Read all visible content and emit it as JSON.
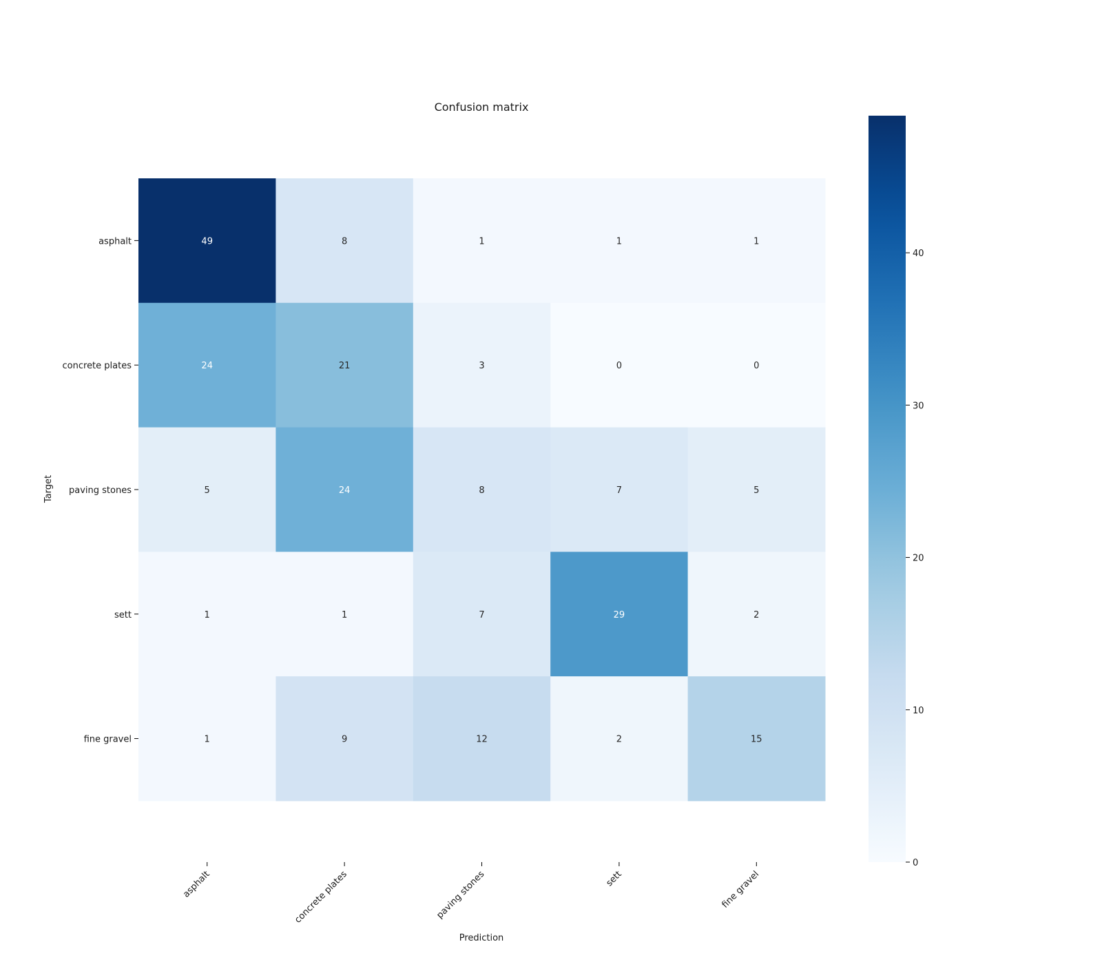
{
  "chart_data": {
    "type": "heatmap",
    "title": "Confusion matrix",
    "xlabel": "Prediction",
    "ylabel": "Target",
    "x_categories": [
      "asphalt",
      "concrete plates",
      "paving stones",
      "sett",
      "fine gravel"
    ],
    "y_categories": [
      "asphalt",
      "concrete plates",
      "paving stones",
      "sett",
      "fine gravel"
    ],
    "values": [
      [
        49,
        8,
        1,
        1,
        1
      ],
      [
        24,
        21,
        3,
        0,
        0
      ],
      [
        5,
        24,
        8,
        7,
        5
      ],
      [
        1,
        1,
        7,
        29,
        2
      ],
      [
        1,
        9,
        12,
        2,
        15
      ]
    ],
    "colormap": "Blues",
    "colorbar": {
      "range": [
        0,
        49
      ],
      "ticks": [
        0,
        10,
        20,
        30,
        40
      ]
    },
    "x_tick_rotation_deg": 45,
    "grid": false
  }
}
